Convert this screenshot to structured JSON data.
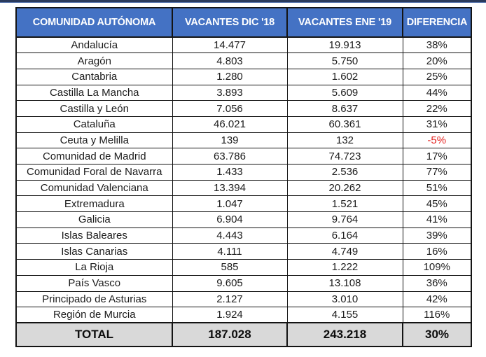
{
  "colors": {
    "header_bg": "#4472C4",
    "header_text": "#FFFFFF",
    "total_row_bg": "#D9D9D9",
    "negative_value_text": "#E42320",
    "grid_border": "#141414",
    "top_strip": "#2A3A5C"
  },
  "table": {
    "columns": [
      "COMUNIDAD AUTÓNOMA",
      "VACANTES DIC '18",
      "VACANTES ENE '19",
      "DIFERENCIA"
    ],
    "rows": [
      {
        "name": "Andalucía",
        "dic18": "14.477",
        "ene19": "19.913",
        "diff": "38%"
      },
      {
        "name": "Aragón",
        "dic18": "4.803",
        "ene19": "5.750",
        "diff": "20%"
      },
      {
        "name": "Cantabria",
        "dic18": "1.280",
        "ene19": "1.602",
        "diff": "25%"
      },
      {
        "name": "Castilla La Mancha",
        "dic18": "3.893",
        "ene19": "5.609",
        "diff": "44%"
      },
      {
        "name": "Castilla y León",
        "dic18": "7.056",
        "ene19": "8.637",
        "diff": "22%"
      },
      {
        "name": "Cataluña",
        "dic18": "46.021",
        "ene19": "60.361",
        "diff": "31%"
      },
      {
        "name": "Ceuta y Melilla",
        "dic18": "139",
        "ene19": "132",
        "diff": "-5%"
      },
      {
        "name": "Comunidad de Madrid",
        "dic18": "63.786",
        "ene19": "74.723",
        "diff": "17%"
      },
      {
        "name": "Comunidad Foral de Navarra",
        "dic18": "1.433",
        "ene19": "2.536",
        "diff": "77%"
      },
      {
        "name": "Comunidad Valenciana",
        "dic18": "13.394",
        "ene19": "20.262",
        "diff": "51%"
      },
      {
        "name": "Extremadura",
        "dic18": "1.047",
        "ene19": "1.521",
        "diff": "45%"
      },
      {
        "name": "Galicia",
        "dic18": "6.904",
        "ene19": "9.764",
        "diff": "41%"
      },
      {
        "name": "Islas Baleares",
        "dic18": "4.443",
        "ene19": "6.164",
        "diff": "39%"
      },
      {
        "name": "Islas Canarias",
        "dic18": "4.111",
        "ene19": "4.749",
        "diff": "16%"
      },
      {
        "name": "La Rioja",
        "dic18": "585",
        "ene19": "1.222",
        "diff": "109%"
      },
      {
        "name": "País Vasco",
        "dic18": "9.605",
        "ene19": "13.108",
        "diff": "36%"
      },
      {
        "name": "Principado de Asturias",
        "dic18": "2.127",
        "ene19": "3.010",
        "diff": "42%"
      },
      {
        "name": "Región de Murcia",
        "dic18": "1.924",
        "ene19": "4.155",
        "diff": "116%"
      }
    ],
    "total": {
      "name": "TOTAL",
      "dic18": "187.028",
      "ene19": "243.218",
      "diff": "30%"
    }
  },
  "chart_data": {
    "type": "table",
    "title": "",
    "columns": [
      "COMUNIDAD AUTÓNOMA",
      "VACANTES DIC '18",
      "VACANTES ENE '19",
      "DIFERENCIA"
    ],
    "rows": [
      [
        "Andalucía",
        14477,
        19913,
        "38%"
      ],
      [
        "Aragón",
        4803,
        5750,
        "20%"
      ],
      [
        "Cantabria",
        1280,
        1602,
        "25%"
      ],
      [
        "Castilla La Mancha",
        3893,
        5609,
        "44%"
      ],
      [
        "Castilla y León",
        7056,
        8637,
        "22%"
      ],
      [
        "Cataluña",
        46021,
        60361,
        "31%"
      ],
      [
        "Ceuta y Melilla",
        139,
        132,
        "-5%"
      ],
      [
        "Comunidad de Madrid",
        63786,
        74723,
        "17%"
      ],
      [
        "Comunidad Foral de Navarra",
        1433,
        2536,
        "77%"
      ],
      [
        "Comunidad Valenciana",
        13394,
        20262,
        "51%"
      ],
      [
        "Extremadura",
        1047,
        1521,
        "45%"
      ],
      [
        "Galicia",
        6904,
        9764,
        "41%"
      ],
      [
        "Islas Baleares",
        4443,
        6164,
        "39%"
      ],
      [
        "Islas Canarias",
        4111,
        4749,
        "16%"
      ],
      [
        "La Rioja",
        585,
        1222,
        "109%"
      ],
      [
        "País Vasco",
        9605,
        13108,
        "36%"
      ],
      [
        "Principado de Asturias",
        2127,
        3010,
        "42%"
      ],
      [
        "Región de Murcia",
        1924,
        4155,
        "116%"
      ],
      [
        "TOTAL",
        187028,
        243218,
        "30%"
      ]
    ],
    "notes": "Negative difference (-5%, Ceuta y Melilla) rendered in red; TOTAL row shaded gray; thousands separated by periods (Spanish format)."
  }
}
